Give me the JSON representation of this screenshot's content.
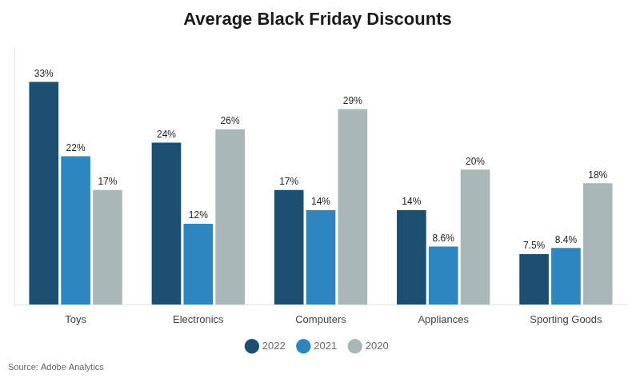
{
  "chart_data": {
    "type": "bar",
    "title": "Average Black Friday Discounts",
    "categories": [
      "Toys",
      "Electronics",
      "Computers",
      "Appliances",
      "Sporting Goods"
    ],
    "series": [
      {
        "name": "2022",
        "color": "#1b4f72",
        "values": [
          33,
          24,
          17,
          14,
          7.5
        ],
        "value_labels": [
          "33%",
          "24%",
          "17%",
          "14%",
          "7.5%"
        ]
      },
      {
        "name": "2021",
        "color": "#2e86c1",
        "values": [
          22,
          12,
          14,
          8.6,
          8.4
        ],
        "value_labels": [
          "22%",
          "12%",
          "14%",
          "8.6%",
          "8.4%"
        ]
      },
      {
        "name": "2020",
        "color": "#aab7b8",
        "values": [
          17,
          26,
          29,
          20,
          18
        ],
        "value_labels": [
          "17%",
          "26%",
          "29%",
          "20%",
          "18%"
        ]
      }
    ],
    "ylim": [
      0,
      38
    ],
    "grid": false,
    "tick_labels": "x",
    "legend": "bottom",
    "data_labels": true,
    "annotations": [
      "Source: Adobe Analytics"
    ]
  }
}
